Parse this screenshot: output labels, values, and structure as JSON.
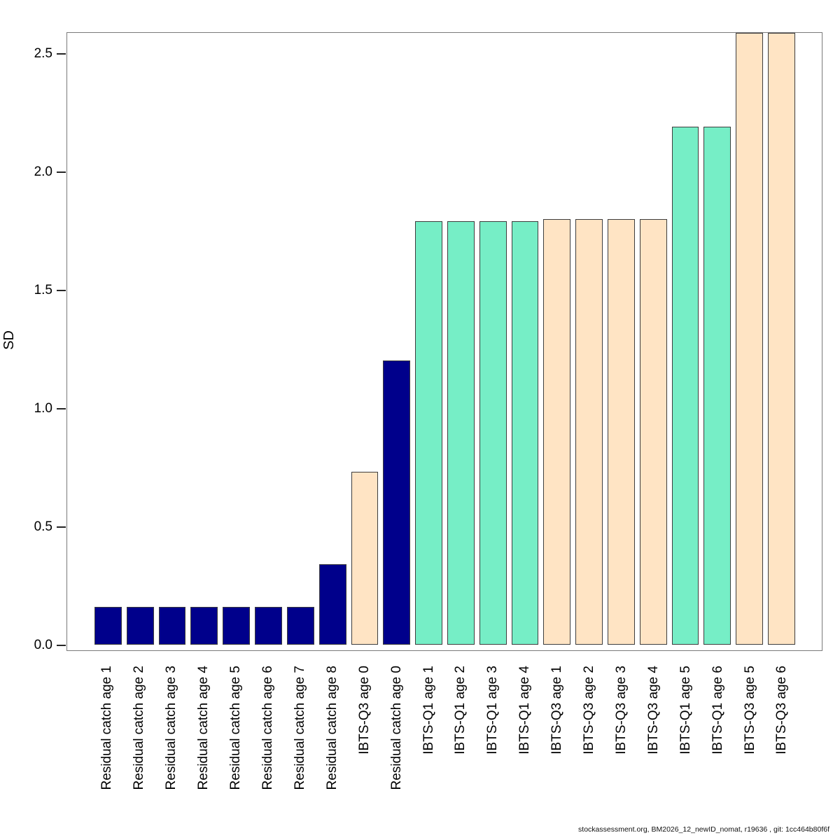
{
  "footer": {
    "text": "stockassessment.org, BM2026_12_newID_nomat, r19636 , git: 1cc464b80f6f"
  },
  "chart_data": {
    "type": "bar",
    "title": "",
    "xlabel": "",
    "ylabel": "SD",
    "ylim": [
      0,
      2.6
    ],
    "grid": false,
    "legend": "none",
    "ytick_labels": [
      "0.0",
      "0.5",
      "1.0",
      "1.5",
      "2.0",
      "2.5"
    ],
    "color_key": {
      "Residual catch": "#00008B",
      "IBTS-Q1": "#76EEC6",
      "IBTS-Q3": "#FFE4C4"
    },
    "note": "Bars for IBTS-Q3 age 5 and age 6 are clipped at the top of the plot box (~2.59).",
    "categories": [
      "Residual catch age 1",
      "Residual catch age 2",
      "Residual catch age 3",
      "Residual catch age 4",
      "Residual catch age 5",
      "Residual catch age 6",
      "Residual catch age 7",
      "Residual catch age 8",
      "IBTS-Q3 age 0",
      "Residual catch age 0",
      "IBTS-Q1 age 1",
      "IBTS-Q1 age 2",
      "IBTS-Q1 age 3",
      "IBTS-Q1 age 4",
      "IBTS-Q3 age 1",
      "IBTS-Q3 age 2",
      "IBTS-Q3 age 3",
      "IBTS-Q3 age 4",
      "IBTS-Q1 age 5",
      "IBTS-Q1 age 6",
      "IBTS-Q3 age 5",
      "IBTS-Q3 age 6"
    ],
    "values": [
      0.16,
      0.16,
      0.16,
      0.16,
      0.16,
      0.16,
      0.16,
      0.34,
      0.73,
      1.2,
      1.79,
      1.79,
      1.79,
      1.79,
      1.8,
      1.8,
      1.8,
      1.8,
      2.19,
      2.19,
      2.59,
      2.59
    ],
    "bar_groups": [
      "Residual catch",
      "Residual catch",
      "Residual catch",
      "Residual catch",
      "Residual catch",
      "Residual catch",
      "Residual catch",
      "Residual catch",
      "IBTS-Q3",
      "Residual catch",
      "IBTS-Q1",
      "IBTS-Q1",
      "IBTS-Q1",
      "IBTS-Q1",
      "IBTS-Q3",
      "IBTS-Q3",
      "IBTS-Q3",
      "IBTS-Q3",
      "IBTS-Q1",
      "IBTS-Q1",
      "IBTS-Q3",
      "IBTS-Q3"
    ]
  }
}
